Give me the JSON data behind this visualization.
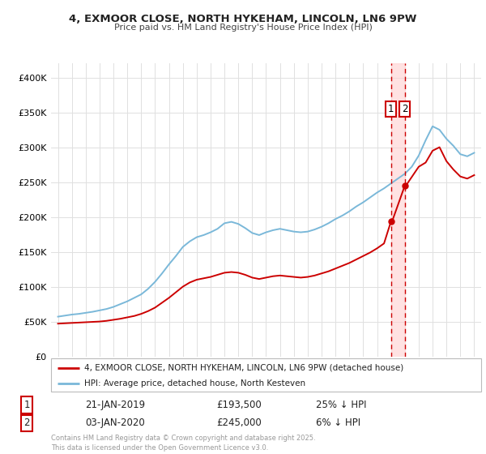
{
  "title_line1": "4, EXMOOR CLOSE, NORTH HYKEHAM, LINCOLN, LN6 9PW",
  "title_line2": "Price paid vs. HM Land Registry's House Price Index (HPI)",
  "background_color": "#ffffff",
  "grid_color": "#e0e0e0",
  "hpi_color": "#7ab8d9",
  "price_color": "#cc0000",
  "highlight_bg": "#fde8e8",
  "dashed_line_color": "#cc0000",
  "legend_label1": "4, EXMOOR CLOSE, NORTH HYKEHAM, LINCOLN, LN6 9PW (detached house)",
  "legend_label2": "HPI: Average price, detached house, North Kesteven",
  "annotation1_date": "21-JAN-2019",
  "annotation1_price": "£193,500",
  "annotation1_note": "25% ↓ HPI",
  "annotation2_date": "03-JAN-2020",
  "annotation2_price": "£245,000",
  "annotation2_note": "6% ↓ HPI",
  "footer": "Contains HM Land Registry data © Crown copyright and database right 2025.\nThis data is licensed under the Open Government Licence v3.0.",
  "ylim": [
    0,
    420000
  ],
  "yticks": [
    0,
    50000,
    100000,
    150000,
    200000,
    250000,
    300000,
    350000,
    400000
  ],
  "hpi_years": [
    1995.0,
    1995.5,
    1996.0,
    1996.5,
    1997.0,
    1997.5,
    1998.0,
    1998.5,
    1999.0,
    1999.5,
    2000.0,
    2000.5,
    2001.0,
    2001.5,
    2002.0,
    2002.5,
    2003.0,
    2003.5,
    2004.0,
    2004.5,
    2005.0,
    2005.5,
    2006.0,
    2006.5,
    2007.0,
    2007.5,
    2008.0,
    2008.5,
    2009.0,
    2009.5,
    2010.0,
    2010.5,
    2011.0,
    2011.5,
    2012.0,
    2012.5,
    2013.0,
    2013.5,
    2014.0,
    2014.5,
    2015.0,
    2015.5,
    2016.0,
    2016.5,
    2017.0,
    2017.5,
    2018.0,
    2018.5,
    2019.0,
    2019.5,
    2020.0,
    2020.5,
    2021.0,
    2021.5,
    2022.0,
    2022.5,
    2023.0,
    2023.5,
    2024.0,
    2024.5,
    2025.0
  ],
  "hpi_values": [
    57000,
    58500,
    60000,
    61000,
    62500,
    64000,
    66000,
    68000,
    71000,
    75000,
    79000,
    84000,
    89000,
    97000,
    107000,
    119000,
    132000,
    144000,
    157000,
    165000,
    171000,
    174000,
    178000,
    183000,
    191000,
    193000,
    190000,
    184000,
    177000,
    174000,
    178000,
    181000,
    183000,
    181000,
    179000,
    178000,
    179000,
    182000,
    186000,
    191000,
    197000,
    202000,
    208000,
    215000,
    221000,
    228000,
    235000,
    241000,
    248000,
    255000,
    262000,
    272000,
    288000,
    310000,
    330000,
    325000,
    312000,
    302000,
    290000,
    287000,
    292000
  ],
  "price_years": [
    1995.0,
    1995.5,
    1996.0,
    1996.5,
    1997.0,
    1997.5,
    1998.0,
    1998.5,
    1999.0,
    1999.5,
    2000.0,
    2000.5,
    2001.0,
    2001.5,
    2002.0,
    2002.5,
    2003.0,
    2003.5,
    2004.0,
    2004.5,
    2005.0,
    2005.5,
    2006.0,
    2006.5,
    2007.0,
    2007.5,
    2008.0,
    2008.5,
    2009.0,
    2009.5,
    2010.0,
    2010.5,
    2011.0,
    2011.5,
    2012.0,
    2012.5,
    2013.0,
    2013.5,
    2014.0,
    2014.5,
    2015.0,
    2015.5,
    2016.0,
    2016.5,
    2017.0,
    2017.5,
    2018.0,
    2018.5,
    2019.0,
    2019.08,
    2020.0,
    2020.08,
    2021.0,
    2021.5,
    2022.0,
    2022.5,
    2023.0,
    2023.5,
    2024.0,
    2024.5,
    2025.0
  ],
  "price_values": [
    47000,
    47500,
    48000,
    48500,
    49000,
    49500,
    50000,
    51000,
    52500,
    54000,
    56000,
    58000,
    61000,
    65000,
    70000,
    77000,
    84000,
    92000,
    100000,
    106000,
    110000,
    112000,
    114000,
    117000,
    120000,
    121000,
    120000,
    117000,
    113000,
    111000,
    113000,
    115000,
    116000,
    115000,
    114000,
    113000,
    114000,
    116000,
    119000,
    122000,
    126000,
    130000,
    134000,
    139000,
    144000,
    149000,
    155000,
    162000,
    193500,
    193500,
    245000,
    245000,
    272000,
    278000,
    295000,
    300000,
    280000,
    268000,
    258000,
    255000,
    260000
  ],
  "marker1_x": 2019.0,
  "marker1_y": 193500,
  "marker2_x": 2020.0,
  "marker2_y": 245000,
  "vline1_x": 2019.0,
  "vline2_x": 2020.0,
  "xmin": 1994.5,
  "xmax": 2025.5
}
